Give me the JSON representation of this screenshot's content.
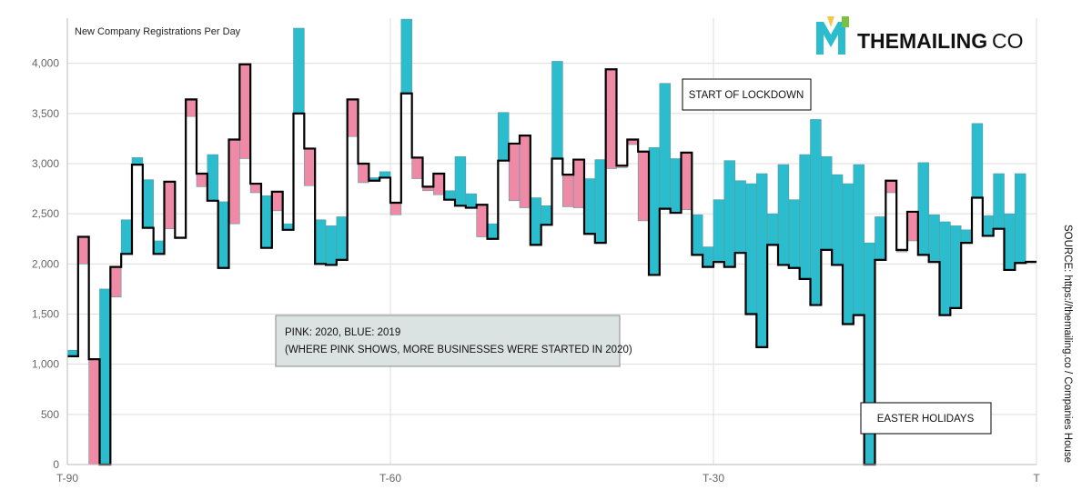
{
  "chart_data": {
    "type": "area",
    "title": "New Company Registrations Per Day",
    "x_ticks": [
      "T-90",
      "T-60",
      "T-30",
      "T"
    ],
    "y_ticks": [
      "0",
      "500",
      "1,000",
      "1,500",
      "2,000",
      "2,500",
      "3,000",
      "3,500",
      "4,000"
    ],
    "ylim": [
      0,
      4450
    ],
    "xlim": [
      -90,
      0
    ],
    "grid": true,
    "series": [
      {
        "name": "2019",
        "color": "#2bbccd",
        "x": [
          -90,
          -89,
          -88,
          -87,
          -86,
          -85,
          -84,
          -83,
          -82,
          -81,
          -80,
          -79,
          -78,
          -77,
          -76,
          -75,
          -74,
          -73,
          -72,
          -71,
          -70,
          -69,
          -68,
          -67,
          -66,
          -65,
          -64,
          -63,
          -62,
          -61,
          -60,
          -59,
          -58,
          -57,
          -56,
          -55,
          -54,
          -53,
          -52,
          -51,
          -50,
          -49,
          -48,
          -47,
          -46,
          -45,
          -44,
          -43,
          -42,
          -41,
          -40,
          -39,
          -38,
          -37,
          -36,
          -35,
          -34,
          -33,
          -32,
          -31,
          -30,
          -29,
          -28,
          -27,
          -26,
          -25,
          -24,
          -23,
          -22,
          -21,
          -20,
          -19,
          -18,
          -17,
          -16,
          -15,
          -14,
          -13,
          -12,
          -11,
          -10,
          -9,
          -8,
          -7,
          -6,
          -5,
          -4,
          -3,
          -2,
          -1
        ],
        "values": [
          1140,
          2000,
          0,
          1750,
          1670,
          2440,
          3060,
          2840,
          2230,
          2350,
          2270,
          3470,
          2770,
          3090,
          2620,
          2400,
          3050,
          2710,
          2680,
          2530,
          2400,
          4350,
          2780,
          2440,
          2380,
          2470,
          3270,
          2810,
          2860,
          2920,
          2490,
          4440,
          2850,
          2730,
          2690,
          2730,
          3070,
          2700,
          2270,
          2400,
          3510,
          2630,
          2560,
          2660,
          2580,
          4020,
          2570,
          2560,
          2850,
          3040,
          2950,
          2960,
          3190,
          2430,
          3160,
          3800,
          3050,
          2540,
          2490,
          2170,
          2640,
          3030,
          2830,
          2800,
          2900,
          2500,
          2990,
          2640,
          3090,
          3440,
          3070,
          2890,
          2800,
          2990,
          2210,
          2470,
          2710,
          2120,
          2230,
          3010,
          2490,
          2420,
          2380,
          2340,
          3400,
          2480,
          2900,
          2500,
          2900,
          2030
        ]
      },
      {
        "name": "2020",
        "color": "#ef8aa6",
        "x": [
          -90,
          -89,
          -88,
          -87,
          -86,
          -85,
          -84,
          -83,
          -82,
          -81,
          -80,
          -79,
          -78,
          -77,
          -76,
          -75,
          -74,
          -73,
          -72,
          -71,
          -70,
          -69,
          -68,
          -67,
          -66,
          -65,
          -64,
          -63,
          -62,
          -61,
          -60,
          -59,
          -58,
          -57,
          -56,
          -55,
          -54,
          -53,
          -52,
          -51,
          -50,
          -49,
          -48,
          -47,
          -46,
          -45,
          -44,
          -43,
          -42,
          -41,
          -40,
          -39,
          -38,
          -37,
          -36,
          -35,
          -34,
          -33,
          -32,
          -31,
          -30,
          -29,
          -28,
          -27,
          -26,
          -25,
          -24,
          -23,
          -22,
          -21,
          -20,
          -19,
          -18,
          -17,
          -16,
          -15,
          -14,
          -13,
          -12,
          -11,
          -10,
          -9,
          -8,
          -7,
          -6,
          -5,
          -4,
          -3,
          -2,
          -1
        ],
        "values": [
          1080,
          2270,
          1050,
          0,
          1970,
          2100,
          2990,
          2360,
          2100,
          2820,
          2260,
          3640,
          2900,
          2630,
          1960,
          3240,
          3990,
          2800,
          2160,
          2720,
          2340,
          3500,
          3150,
          2000,
          1990,
          2040,
          3640,
          3000,
          2830,
          2860,
          2610,
          3700,
          3060,
          2770,
          2900,
          2640,
          2580,
          2560,
          2590,
          2250,
          3030,
          3200,
          3280,
          2190,
          2390,
          3050,
          2890,
          3040,
          2300,
          2210,
          3940,
          2980,
          3240,
          3120,
          1890,
          2550,
          2510,
          3110,
          2090,
          1970,
          2020,
          1970,
          2110,
          1500,
          1170,
          2190,
          1990,
          1960,
          1850,
          1590,
          2140,
          1990,
          1400,
          1490,
          0,
          2040,
          2830,
          2140,
          2520,
          2090,
          2020,
          1490,
          1560,
          2210,
          2660,
          2280,
          2350,
          1940,
          2010,
          2020
        ]
      }
    ],
    "annotations": [
      "START OF LOCKDOWN",
      "EASTER HOLIDAYS"
    ],
    "legend_lines": [
      "PINK: 2020, BLUE: 2019",
      "(WHERE PINK SHOWS, MORE BUSINESSES WERE STARTED IN 2020)"
    ]
  },
  "title": "New Company Registrations Per Day",
  "annotation_lockdown": "START OF LOCKDOWN",
  "annotation_easter": "EASTER HOLIDAYS",
  "legend_line1": "PINK: 2020, BLUE: 2019",
  "legend_line2": "(WHERE PINK SHOWS, MORE BUSINESSES WERE STARTED IN 2020)",
  "source": "SOURCE: https://themailing.co / Companies House",
  "logo_bold": "THEMAILING",
  "logo_light": "CO",
  "logo_mark": "M",
  "colors": {
    "pink_2020": "#ef8aa6",
    "blue_2019": "#2bbccd",
    "line": "#000000",
    "grid": "#dddddd",
    "legend_bg": "#dbe3e2"
  }
}
